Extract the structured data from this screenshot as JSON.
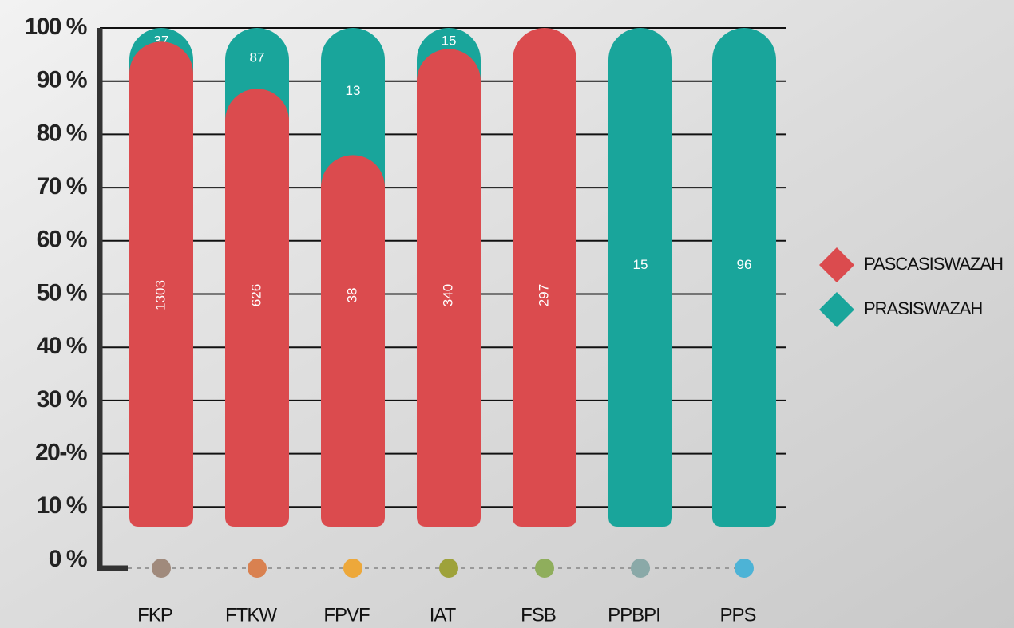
{
  "chart_data": {
    "type": "stacked_percent_bar",
    "categories": [
      "FKP",
      "FTKW",
      "FPVF",
      "IAT",
      "FSB",
      "PPBPI",
      "PPS"
    ],
    "category_colors": [
      "#a08a7c",
      "#d98150",
      "#eda83a",
      "#9ea23a",
      "#8fae5c",
      "#8aa9a8",
      "#4db3d6"
    ],
    "series": [
      {
        "name": "PASCASISWAZAH",
        "color": "#db4b4e",
        "values": [
          1303,
          626,
          38,
          340,
          297,
          null,
          null
        ]
      },
      {
        "name": "PRASISWAZAH",
        "color": "#19a59b",
        "values": [
          37,
          87,
          13,
          15,
          null,
          15,
          96
        ]
      }
    ],
    "ylim": [
      0,
      100
    ],
    "yticks": [
      {
        "value": 0,
        "label": "0 %"
      },
      {
        "value": 10,
        "label": "10 %"
      },
      {
        "value": 20,
        "label": "20-%"
      },
      {
        "value": 30,
        "label": "30 %"
      },
      {
        "value": 40,
        "label": "40 %"
      },
      {
        "value": 50,
        "label": "50 %"
      },
      {
        "value": 60,
        "label": "60 %"
      },
      {
        "value": 70,
        "label": "70 %"
      },
      {
        "value": 80,
        "label": "80 %"
      },
      {
        "value": 90,
        "label": "90 %"
      },
      {
        "value": 100,
        "label": "100 %"
      }
    ],
    "grid": true,
    "legend": "right"
  }
}
